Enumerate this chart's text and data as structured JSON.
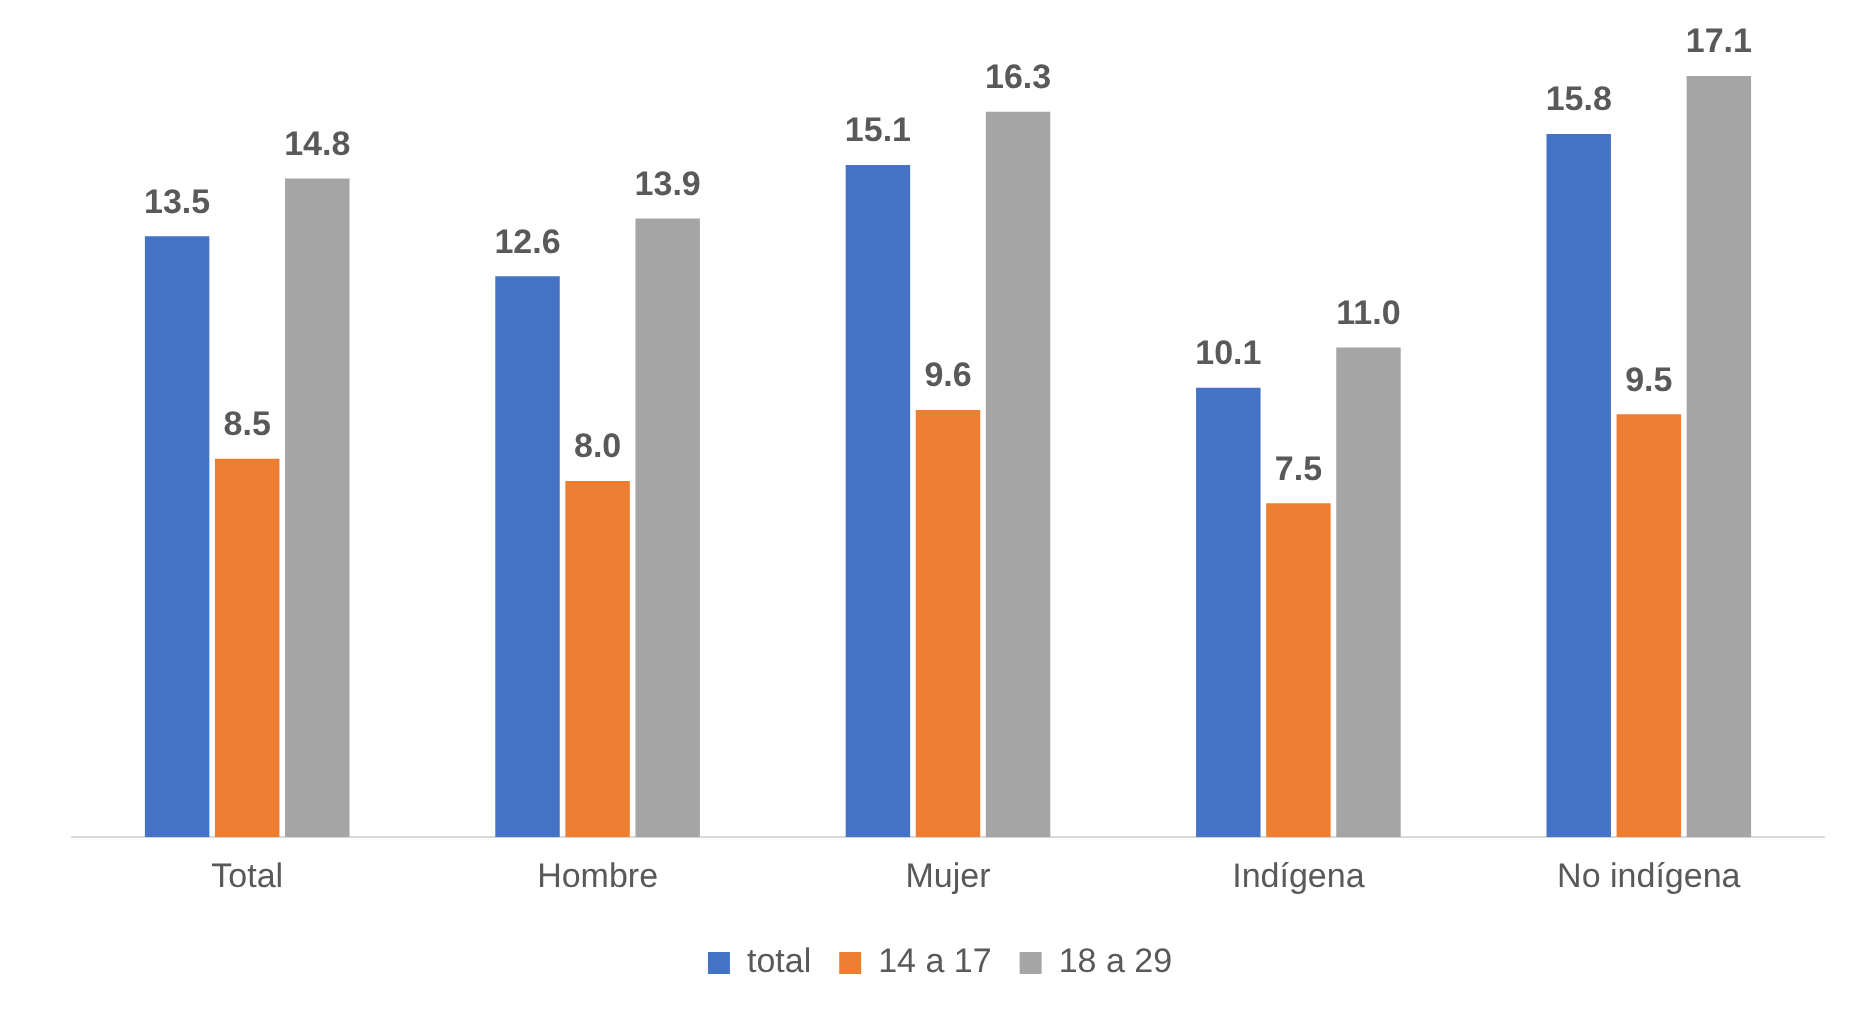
{
  "chart_data": {
    "type": "bar",
    "categories": [
      "Total",
      "Hombre",
      "Mujer",
      "Indígena",
      "No indígena"
    ],
    "series": [
      {
        "name": "total",
        "color": "#4472c4",
        "values": [
          13.5,
          12.6,
          15.1,
          10.1,
          15.8
        ],
        "value_labels": [
          "13.5",
          "12.6",
          "15.1",
          "10.1",
          "15.8"
        ]
      },
      {
        "name": "14 a 17",
        "color": "#ed7d31",
        "values": [
          8.5,
          8.0,
          9.6,
          7.5,
          9.5
        ],
        "value_labels": [
          "8.5",
          "8.0",
          "9.6",
          "7.5",
          "9.5"
        ]
      },
      {
        "name": "18 a 29",
        "color": "#a5a5a5",
        "values": [
          14.8,
          13.9,
          16.3,
          11.0,
          17.1
        ],
        "value_labels": [
          "14.8",
          "13.9",
          "16.3",
          "11.0",
          "17.1"
        ]
      }
    ],
    "legend": "bottom",
    "grid": false
  }
}
